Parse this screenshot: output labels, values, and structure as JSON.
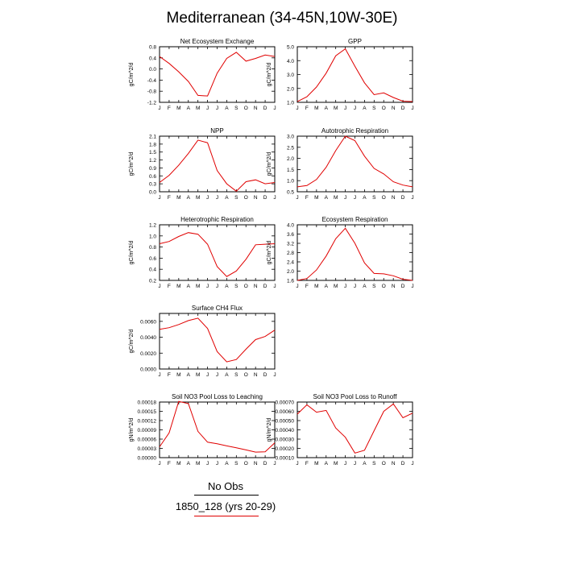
{
  "title": "Mediterranean (34-45N,10W-30E)",
  "legend": {
    "obs_label": "No Obs",
    "case_label": "1850_128 (yrs 20-29)",
    "case_color": "#e00000",
    "obs_color": "#000000"
  },
  "months": [
    "J",
    "F",
    "M",
    "A",
    "M",
    "J",
    "J",
    "A",
    "S",
    "O",
    "N",
    "D",
    "J"
  ],
  "chart_data": [
    {
      "type": "line",
      "title": "Net Ecosystem Exchange",
      "ylabel": "gC/m^2/d",
      "ylim": [
        -1.2,
        0.8
      ],
      "yticks": [
        "0.8",
        "0.4",
        "0.0",
        "-0.4",
        "-0.8",
        "-1.2"
      ],
      "ytick_values": [
        0.8,
        0.4,
        0.0,
        -0.4,
        -0.8,
        -1.2
      ],
      "x": [
        "J",
        "F",
        "M",
        "A",
        "M",
        "J",
        "J",
        "A",
        "S",
        "O",
        "N",
        "D",
        "J"
      ],
      "series": [
        {
          "values": [
            0.45,
            0.2,
            -0.1,
            -0.45,
            -0.95,
            -0.97,
            -0.15,
            0.38,
            0.6,
            0.28,
            0.38,
            0.5,
            0.45
          ]
        }
      ]
    },
    {
      "type": "line",
      "title": "GPP",
      "ylabel": "gC/m^2/d",
      "ylim": [
        1.0,
        5.0
      ],
      "yticks": [
        "5.0",
        "4.0",
        "3.0",
        "2.0",
        "1.0"
      ],
      "ytick_values": [
        5.0,
        4.0,
        3.0,
        2.0,
        1.0
      ],
      "x": [
        "J",
        "F",
        "M",
        "A",
        "M",
        "J",
        "J",
        "A",
        "S",
        "O",
        "N",
        "D",
        "J"
      ],
      "series": [
        {
          "values": [
            1.05,
            1.4,
            2.1,
            3.1,
            4.35,
            4.85,
            3.6,
            2.4,
            1.55,
            1.68,
            1.35,
            1.08,
            1.05
          ]
        }
      ]
    },
    {
      "type": "line",
      "title": "NPP",
      "ylabel": "gC/m^2/d",
      "ylim": [
        0.0,
        2.1
      ],
      "yticks": [
        "2.1",
        "1.8",
        "1.5",
        "1.2",
        "0.9",
        "0.6",
        "0.3",
        "0.0"
      ],
      "ytick_values": [
        2.1,
        1.8,
        1.5,
        1.2,
        0.9,
        0.6,
        0.3,
        0.0
      ],
      "x": [
        "J",
        "F",
        "M",
        "A",
        "M",
        "J",
        "J",
        "A",
        "S",
        "O",
        "N",
        "D",
        "J"
      ],
      "series": [
        {
          "values": [
            0.35,
            0.62,
            1.0,
            1.45,
            1.95,
            1.85,
            0.8,
            0.3,
            0.02,
            0.38,
            0.45,
            0.3,
            0.35
          ]
        }
      ]
    },
    {
      "type": "line",
      "title": "Autotrophic Respiration",
      "ylabel": "gC/m^2/d",
      "ylim": [
        0.5,
        3.0
      ],
      "yticks": [
        "3.0",
        "2.5",
        "2.0",
        "1.5",
        "1.0",
        "0.5"
      ],
      "ytick_values": [
        3.0,
        2.5,
        2.0,
        1.5,
        1.0,
        0.5
      ],
      "x": [
        "J",
        "F",
        "M",
        "A",
        "M",
        "J",
        "J",
        "A",
        "S",
        "O",
        "N",
        "D",
        "J"
      ],
      "series": [
        {
          "values": [
            0.72,
            0.78,
            1.05,
            1.6,
            2.35,
            3.0,
            2.8,
            2.1,
            1.55,
            1.3,
            0.95,
            0.8,
            0.72
          ]
        }
      ]
    },
    {
      "type": "line",
      "title": "Heterotrophic Respiration",
      "ylabel": "gC/m^2/d",
      "ylim": [
        0.2,
        1.2
      ],
      "yticks": [
        "1.2",
        "1.0",
        "0.8",
        "0.6",
        "0.4",
        "0.2"
      ],
      "ytick_values": [
        1.2,
        1.0,
        0.8,
        0.6,
        0.4,
        0.2
      ],
      "x": [
        "J",
        "F",
        "M",
        "A",
        "M",
        "J",
        "J",
        "A",
        "S",
        "O",
        "N",
        "D",
        "J"
      ],
      "series": [
        {
          "values": [
            0.86,
            0.9,
            0.99,
            1.06,
            1.03,
            0.85,
            0.45,
            0.27,
            0.37,
            0.58,
            0.84,
            0.85,
            0.86
          ]
        }
      ]
    },
    {
      "type": "line",
      "title": "Ecosystem Respiration",
      "ylabel": "gC/m^2/d",
      "ylim": [
        1.6,
        4.0
      ],
      "yticks": [
        "4.0",
        "3.6",
        "3.2",
        "2.8",
        "2.4",
        "2.0",
        "1.6"
      ],
      "ytick_values": [
        4.0,
        3.6,
        3.2,
        2.8,
        2.4,
        2.0,
        1.6
      ],
      "x": [
        "J",
        "F",
        "M",
        "A",
        "M",
        "J",
        "J",
        "A",
        "S",
        "O",
        "N",
        "D",
        "J"
      ],
      "series": [
        {
          "values": [
            1.6,
            1.68,
            2.05,
            2.65,
            3.4,
            3.85,
            3.2,
            2.35,
            1.9,
            1.88,
            1.8,
            1.65,
            1.6
          ]
        }
      ]
    },
    {
      "type": "line",
      "title": "Surface CH4 Flux",
      "ylabel": "gC/m^2/d",
      "ylim": [
        0.0,
        0.007
      ],
      "yticks": [
        "0.0060",
        "0.0040",
        "0.0020",
        "0.0000"
      ],
      "ytick_values": [
        0.006,
        0.004,
        0.002,
        0.0
      ],
      "x": [
        "J",
        "F",
        "M",
        "A",
        "M",
        "J",
        "J",
        "A",
        "S",
        "O",
        "N",
        "D",
        "J"
      ],
      "series": [
        {
          "values": [
            0.005,
            0.0052,
            0.0056,
            0.0061,
            0.0064,
            0.0051,
            0.0022,
            0.0009,
            0.0012,
            0.0025,
            0.0037,
            0.0041,
            0.0049
          ]
        }
      ]
    },
    {
      "type": "line",
      "title": "Soil NO3 Pool Loss to Leaching",
      "ylabel": "gN/m^2/d",
      "ylim": [
        0.0,
        0.00018
      ],
      "yticks": [
        "0.00018",
        "0.00015",
        "0.00012",
        "0.00009",
        "0.00006",
        "0.00003",
        "0.00000"
      ],
      "ytick_values": [
        0.00018,
        0.00015,
        0.00012,
        9e-05,
        6e-05,
        3e-05,
        0.0
      ],
      "x": [
        "J",
        "F",
        "M",
        "A",
        "M",
        "J",
        "J",
        "A",
        "S",
        "O",
        "N",
        "D",
        "J"
      ],
      "series": [
        {
          "values": [
            3.5e-05,
            8e-05,
            0.000182,
            0.000175,
            8.5e-05,
            5e-05,
            4.5e-05,
            3.8e-05,
            3.2e-05,
            2.5e-05,
            1.8e-05,
            1.9e-05,
            4.8e-05
          ]
        }
      ]
    },
    {
      "type": "line",
      "title": "Soil NO3 Pool Loss to Runoff",
      "ylabel": "gN/m^2/d",
      "ylim": [
        0.0001,
        0.0007
      ],
      "yticks": [
        "0.00070",
        "0.00060",
        "0.00050",
        "0.00040",
        "0.00030",
        "0.00020",
        "0.00010"
      ],
      "ytick_values": [
        0.0007,
        0.0006,
        0.0005,
        0.0004,
        0.0003,
        0.0002,
        0.0001
      ],
      "x": [
        "J",
        "F",
        "M",
        "A",
        "M",
        "J",
        "J",
        "A",
        "S",
        "O",
        "N",
        "D",
        "J"
      ],
      "series": [
        {
          "values": [
            0.00057,
            0.00067,
            0.00059,
            0.00061,
            0.00042,
            0.00032,
            0.00015,
            0.00018,
            0.00039,
            0.0006,
            0.00068,
            0.00053,
            0.00058
          ]
        }
      ]
    }
  ]
}
